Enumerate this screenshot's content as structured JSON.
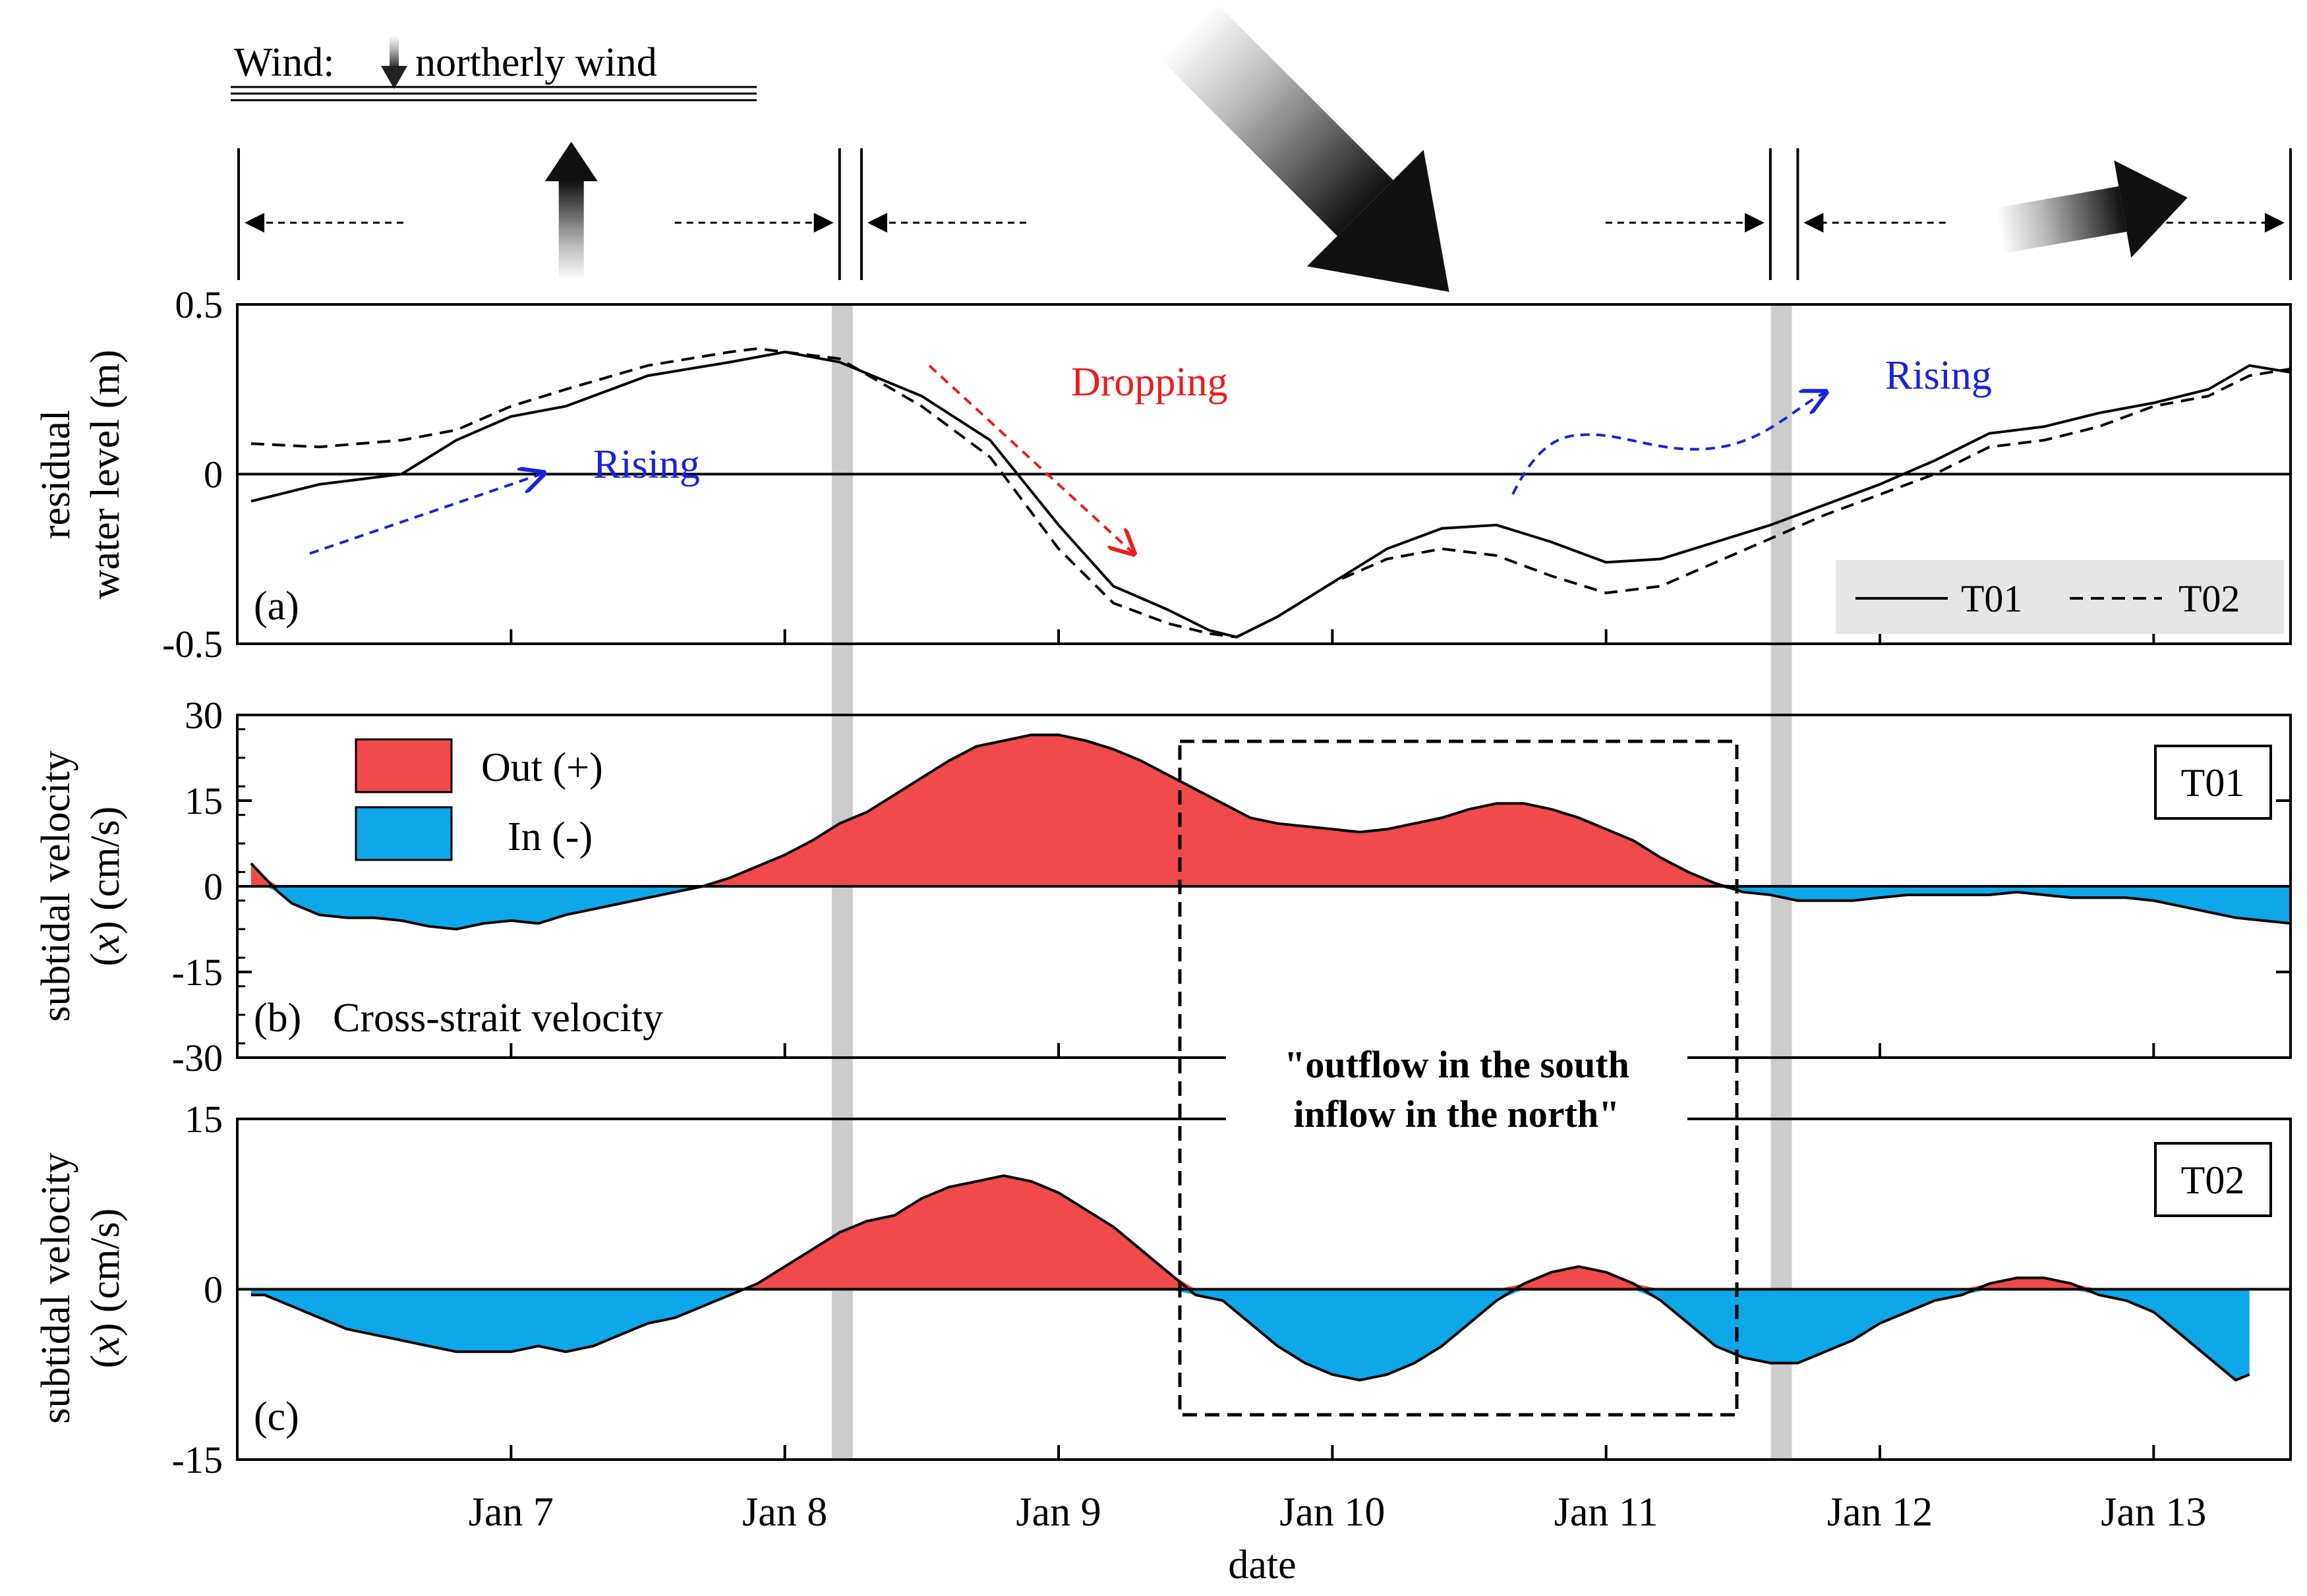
{
  "colors": {
    "out": "#f04a4a",
    "in": "#0ea8e8",
    "rising": "#1a22e0",
    "dropping": "#ee1c1c",
    "shade": "#cccccc"
  },
  "wind": {
    "legend": "Wind:",
    "legend_desc": "northerly wind",
    "arrows": [
      {
        "name": "wind-arrow-south",
        "icon": "arrow-up-icon",
        "day": 7.22,
        "angle_deg": 0,
        "strength": "weak"
      },
      {
        "name": "wind-arrow-northwest",
        "icon": "arrow-down-right-icon",
        "day": 9.95,
        "angle_deg": 135,
        "strength": "strong"
      },
      {
        "name": "wind-arrow-west",
        "icon": "arrow-right-icon",
        "day": 12.78,
        "angle_deg": 80,
        "strength": "moderate"
      }
    ],
    "periods": [
      [
        6.0,
        8.2
      ],
      [
        8.28,
        11.6
      ],
      [
        11.7,
        13.5
      ]
    ]
  },
  "shaded_days": [
    8.21,
    11.64
  ],
  "chart_data": [
    {
      "panel": "(a)",
      "type": "line",
      "ylabel_line1": "residual",
      "ylabel_line2": "water level (m)",
      "ylim": [
        -0.5,
        0.5
      ],
      "yticks": [
        "0.5",
        "0",
        "-0.5"
      ],
      "xlim": [
        6.0,
        13.5
      ],
      "series": [
        {
          "name": "T01",
          "style": "solid",
          "x": [
            6.05,
            6.3,
            6.6,
            6.8,
            7.0,
            7.2,
            7.5,
            7.8,
            8.0,
            8.2,
            8.5,
            8.75,
            9.0,
            9.2,
            9.4,
            9.55,
            9.65,
            9.8,
            10.0,
            10.2,
            10.4,
            10.6,
            10.8,
            11.0,
            11.2,
            11.4,
            11.6,
            11.8,
            12.0,
            12.2,
            12.4,
            12.6,
            12.8,
            13.0,
            13.2,
            13.35,
            13.5
          ],
          "values": [
            -0.08,
            -0.03,
            0.0,
            0.1,
            0.17,
            0.2,
            0.29,
            0.33,
            0.36,
            0.33,
            0.23,
            0.1,
            -0.15,
            -0.33,
            -0.4,
            -0.46,
            -0.48,
            -0.42,
            -0.32,
            -0.22,
            -0.16,
            -0.15,
            -0.2,
            -0.26,
            -0.25,
            -0.2,
            -0.15,
            -0.09,
            -0.03,
            0.04,
            0.12,
            0.14,
            0.18,
            0.21,
            0.25,
            0.32,
            0.3
          ]
        },
        {
          "name": "T02",
          "style": "dashed",
          "x": [
            6.05,
            6.3,
            6.6,
            6.8,
            7.0,
            7.2,
            7.5,
            7.8,
            7.9,
            8.2,
            8.5,
            8.75,
            9.0,
            9.2,
            9.4,
            9.55,
            9.65,
            9.8,
            10.0,
            10.2,
            10.4,
            10.6,
            10.8,
            11.0,
            11.2,
            11.4,
            11.6,
            11.8,
            12.0,
            12.2,
            12.4,
            12.6,
            12.8,
            13.0,
            13.2,
            13.35,
            13.5
          ],
          "values": [
            0.09,
            0.08,
            0.1,
            0.13,
            0.2,
            0.25,
            0.32,
            0.36,
            0.37,
            0.34,
            0.2,
            0.05,
            -0.22,
            -0.38,
            -0.44,
            -0.47,
            -0.48,
            -0.42,
            -0.32,
            -0.25,
            -0.22,
            -0.24,
            -0.3,
            -0.35,
            -0.33,
            -0.26,
            -0.19,
            -0.12,
            -0.06,
            0.0,
            0.08,
            0.1,
            0.14,
            0.2,
            0.23,
            0.29,
            0.31
          ]
        }
      ],
      "legend": [
        "T01",
        "T02"
      ],
      "annotations": {
        "rising_left": "Rising",
        "dropping": "Dropping",
        "rising_right": "Rising"
      }
    },
    {
      "panel": "(b)",
      "type": "area",
      "title": "Cross-strait velocity",
      "ylabel_line1": "subtidal velocity",
      "ylabel_var": "x",
      "ylabel_unit": "(cm/s)",
      "ylim": [
        -30,
        30
      ],
      "yticks": [
        "30",
        "15",
        "0",
        "-15",
        "-30"
      ],
      "station": "T01",
      "legend": {
        "out": "Out (+)",
        "in": "In (-)"
      },
      "x": [
        6.05,
        6.1,
        6.15,
        6.2,
        6.3,
        6.4,
        6.5,
        6.6,
        6.7,
        6.8,
        6.9,
        7.0,
        7.1,
        7.2,
        7.3,
        7.4,
        7.5,
        7.6,
        7.7,
        7.8,
        7.85,
        7.9,
        8.0,
        8.1,
        8.2,
        8.3,
        8.4,
        8.5,
        8.6,
        8.7,
        8.8,
        8.9,
        9.0,
        9.1,
        9.2,
        9.3,
        9.4,
        9.5,
        9.6,
        9.7,
        9.8,
        9.9,
        10.0,
        10.1,
        10.2,
        10.3,
        10.4,
        10.5,
        10.6,
        10.7,
        10.8,
        10.9,
        11.0,
        11.1,
        11.2,
        11.3,
        11.4,
        11.5,
        11.6,
        11.65,
        11.7,
        11.8,
        11.9,
        12.0,
        12.1,
        12.2,
        12.3,
        12.4,
        12.5,
        12.6,
        12.7,
        12.8,
        12.9,
        13.0,
        13.1,
        13.2,
        13.3,
        13.4,
        13.5
      ],
      "values": [
        4,
        1.5,
        -1,
        -3,
        -5,
        -5.5,
        -5.5,
        -6,
        -7,
        -7.5,
        -6.5,
        -6,
        -6.5,
        -5,
        -4,
        -3,
        -2,
        -1,
        0,
        1.5,
        2.5,
        3.5,
        5.5,
        8,
        11,
        13,
        16,
        19,
        22,
        24.5,
        25.5,
        26.5,
        26.5,
        25.5,
        24,
        22,
        19.5,
        17,
        14.5,
        12,
        11,
        10.5,
        10,
        9.5,
        10,
        11,
        12,
        13.5,
        14.5,
        14.5,
        13.5,
        12,
        10,
        8,
        5,
        2.5,
        0.5,
        -1,
        -1.5,
        -2,
        -2.5,
        -2.5,
        -2.5,
        -2,
        -1.5,
        -1.5,
        -1.5,
        -1.5,
        -1,
        -1.5,
        -2,
        -2,
        -2,
        -2.5,
        -3.5,
        -4.5,
        -5.5,
        -6,
        -6.5
      ]
    },
    {
      "panel": "(c)",
      "type": "area",
      "ylabel_line1": "subtidal velocity",
      "ylabel_var": "x",
      "ylabel_unit": "(cm/s)",
      "ylim": [
        -15,
        15
      ],
      "yticks": [
        "15",
        "0",
        "-15"
      ],
      "station": "T02",
      "xlabel": "date",
      "xtick_values": [
        7,
        8,
        9,
        10,
        11,
        12,
        13
      ],
      "xticks": [
        "Jan 7",
        "Jan 8",
        "Jan 9",
        "Jan 10",
        "Jan 11",
        "Jan 12",
        "Jan 13"
      ],
      "x": [
        6.05,
        6.1,
        6.2,
        6.3,
        6.4,
        6.5,
        6.6,
        6.7,
        6.8,
        6.9,
        7.0,
        7.1,
        7.2,
        7.3,
        7.4,
        7.5,
        7.6,
        7.7,
        7.8,
        7.85,
        7.9,
        8.0,
        8.1,
        8.2,
        8.3,
        8.4,
        8.5,
        8.6,
        8.7,
        8.8,
        8.9,
        9.0,
        9.1,
        9.2,
        9.3,
        9.4,
        9.5,
        9.6,
        9.7,
        9.8,
        9.9,
        10.0,
        10.1,
        10.2,
        10.3,
        10.4,
        10.5,
        10.6,
        10.7,
        10.8,
        10.9,
        11.0,
        11.1,
        11.2,
        11.3,
        11.4,
        11.5,
        11.6,
        11.7,
        11.8,
        11.9,
        12.0,
        12.1,
        12.2,
        12.3,
        12.4,
        12.5,
        12.6,
        12.7,
        12.8,
        12.9,
        13.0,
        13.1,
        13.2,
        13.3,
        13.35
      ],
      "values": [
        -0.5,
        -0.5,
        -1.5,
        -2.5,
        -3.5,
        -4,
        -4.5,
        -5,
        -5.5,
        -5.5,
        -5.5,
        -5,
        -5.5,
        -5,
        -4,
        -3,
        -2.5,
        -1.5,
        -0.5,
        0,
        0.5,
        2,
        3.5,
        5,
        6,
        6.5,
        8,
        9,
        9.5,
        10,
        9.5,
        8.5,
        7,
        5.5,
        3.5,
        1.5,
        -0.5,
        -1,
        -3,
        -5,
        -6.5,
        -7.5,
        -8,
        -7.5,
        -6.5,
        -5,
        -3,
        -1,
        0.5,
        1.5,
        2,
        1.5,
        0.5,
        -1,
        -3,
        -5,
        -6,
        -6.5,
        -6.5,
        -5.5,
        -4.5,
        -3,
        -2,
        -1,
        -0.5,
        0.5,
        1,
        1,
        0.5,
        -0.5,
        -1,
        -2,
        -4,
        -6,
        -8,
        -7.5
      ]
    }
  ],
  "highlight_box": {
    "line1": "\"outflow in the south",
    "line2": "inflow in the north\""
  }
}
